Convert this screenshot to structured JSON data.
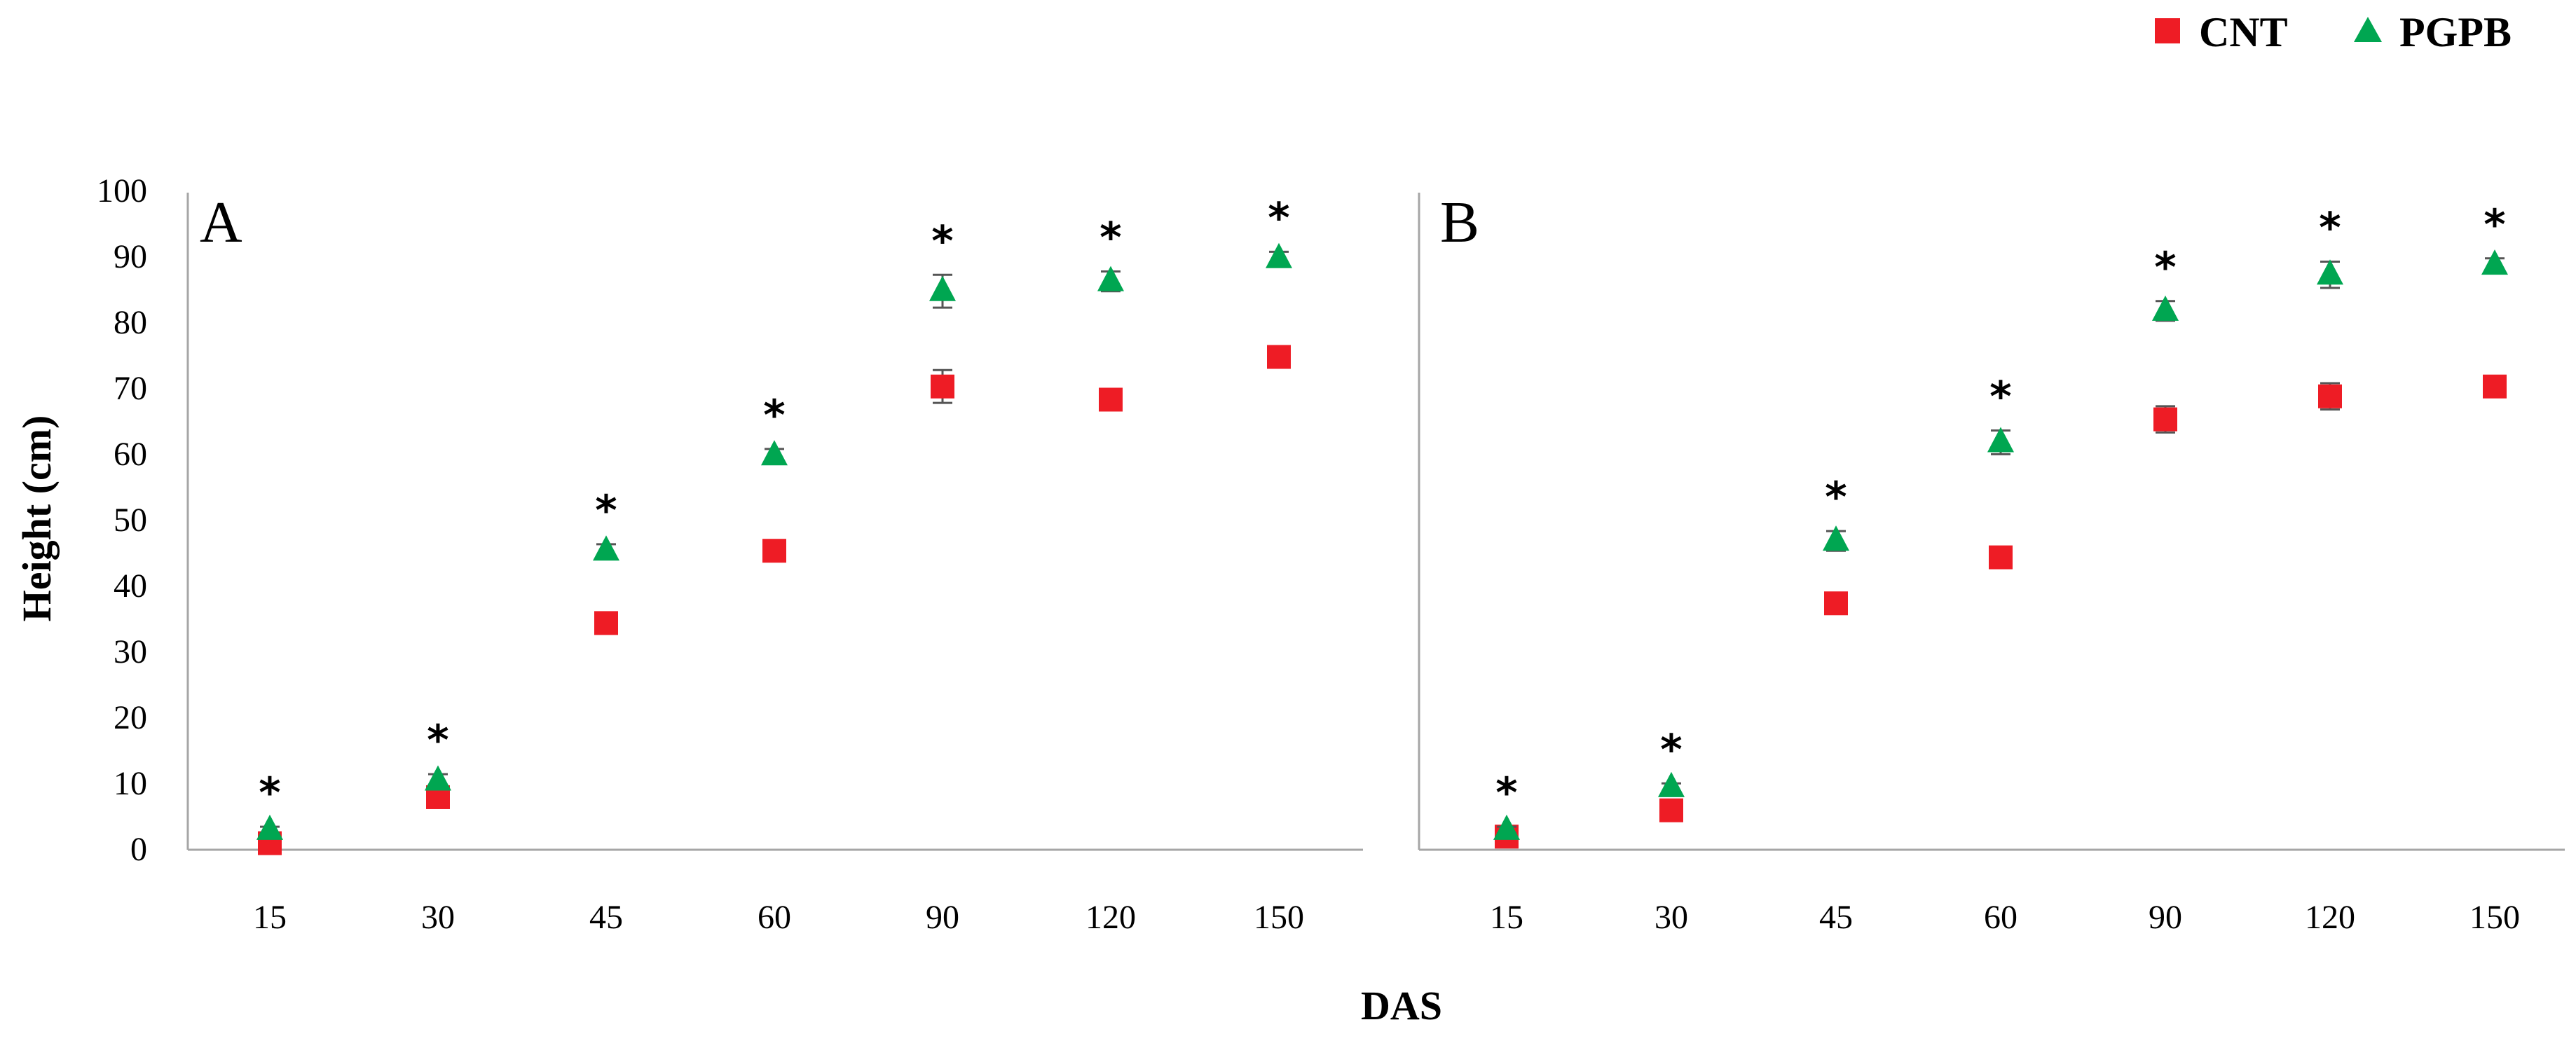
{
  "chart_data": {
    "type": "scatter",
    "categories": [
      "15",
      "30",
      "45",
      "60",
      "90",
      "120",
      "150"
    ],
    "xlabel": "DAS",
    "ylabel": "Height (cm)",
    "ylim": [
      0,
      100
    ],
    "yticks": [
      "0",
      "10",
      "20",
      "30",
      "40",
      "50",
      "60",
      "70",
      "80",
      "90",
      "100"
    ],
    "legend": {
      "position": "top-right",
      "entries": [
        {
          "name": "CNT",
          "color": "#ee1c25",
          "marker": "square"
        },
        {
          "name": "PGPB",
          "color": "#00a651",
          "marker": "triangle"
        }
      ]
    },
    "significance_marker": "*",
    "panels": [
      {
        "label": "A",
        "series": [
          {
            "name": "CNT",
            "values": [
              1,
              8,
              34.5,
              45.5,
              70.5,
              68.5,
              75
            ],
            "errors": [
              0.5,
              0.8,
              0.8,
              1,
              2.5,
              1.5,
              1.5
            ]
          },
          {
            "name": "PGPB",
            "values": [
              3,
              10.5,
              45.5,
              60,
              85,
              86.5,
              90
            ],
            "errors": [
              0.5,
              1,
              1,
              1,
              2.5,
              1.5,
              1
            ]
          }
        ],
        "significance": [
          true,
          true,
          true,
          true,
          true,
          true,
          true
        ]
      },
      {
        "label": "B",
        "series": [
          {
            "name": "CNT",
            "values": [
              2,
              6,
              37.5,
              44.5,
              65.5,
              69,
              70.5
            ],
            "errors": [
              0.5,
              0.5,
              0.8,
              1,
              2,
              2,
              1.2
            ]
          },
          {
            "name": "PGPB",
            "values": [
              3,
              9.5,
              47,
              62,
              82,
              87.5,
              89
            ],
            "errors": [
              0.5,
              0.6,
              1.5,
              1.8,
              1.5,
              2,
              1
            ]
          }
        ],
        "significance": [
          true,
          true,
          true,
          true,
          true,
          true,
          true
        ]
      }
    ]
  }
}
